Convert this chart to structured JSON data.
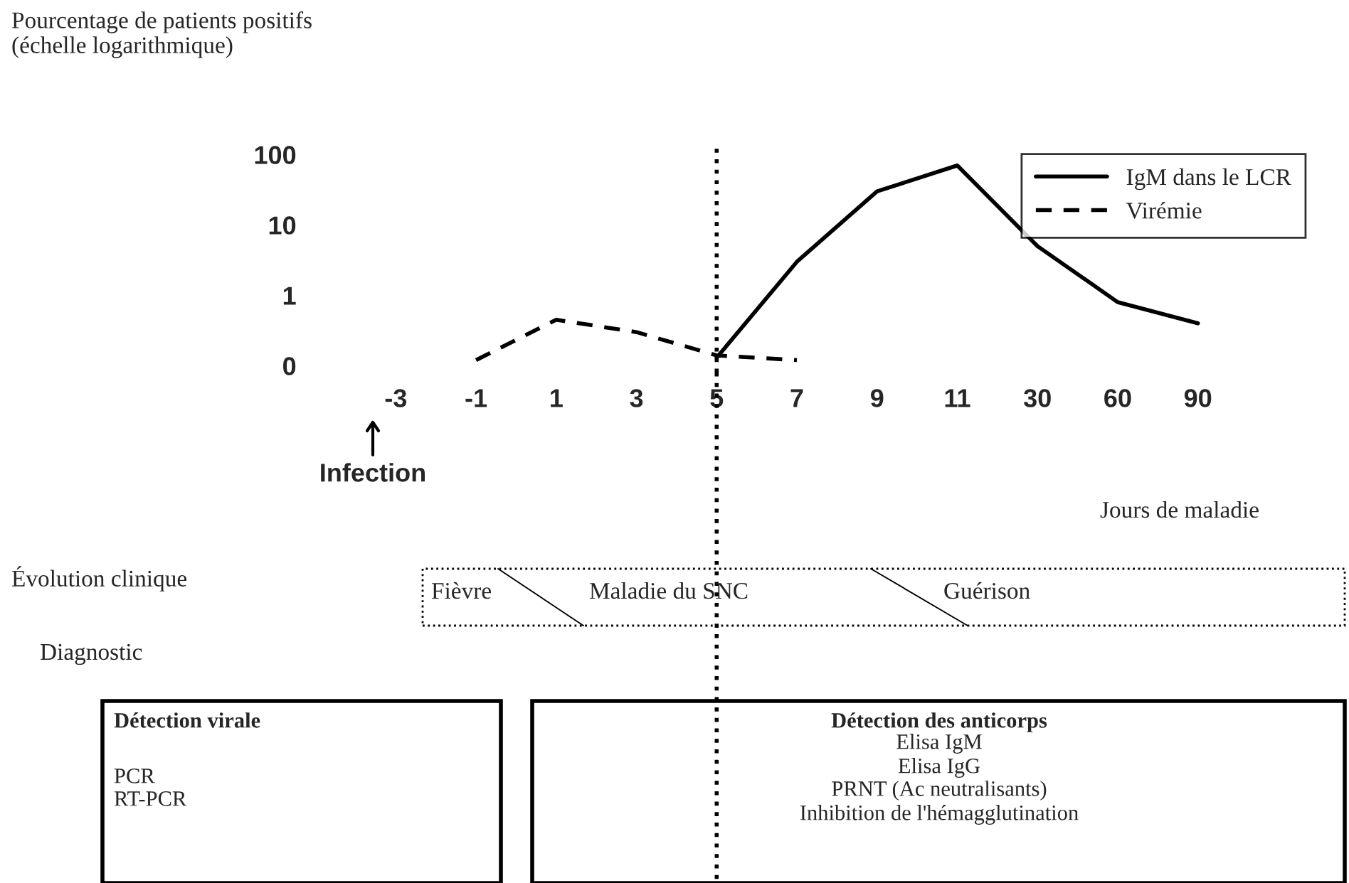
{
  "chart_data": {
    "type": "line",
    "ylabel": "Pourcentage de patients positifs\n(échelle logarithmique)",
    "xlabel": "Jours de maladie",
    "categories": [
      "-3",
      "-1",
      "1",
      "3",
      "5",
      "7",
      "9",
      "11",
      "30",
      "60",
      "90"
    ],
    "series": [
      {
        "name": "IgM dans le LCR",
        "color": "#000000",
        "line_style": "solid",
        "values": [
          null,
          null,
          null,
          null,
          0.13,
          3,
          30,
          70,
          5,
          0.8,
          0.4
        ]
      },
      {
        "name": "Virémie",
        "color": "#000000",
        "line_style": "dashed",
        "values": [
          null,
          0.12,
          0.45,
          0.3,
          0.14,
          0.12,
          null,
          null,
          null,
          null,
          null
        ]
      }
    ],
    "log": true,
    "ylim": [
      0.08,
      150
    ],
    "yticks": [
      {
        "value": 0.1,
        "label": "0"
      },
      1,
      10,
      100
    ],
    "ref_lines": [
      {
        "axis": "x",
        "value": "5",
        "line_style": "dotted",
        "color": "#000000"
      }
    ],
    "legend": "top right",
    "grid": false,
    "annotations": [
      "Infection",
      "Évolution clinique",
      "Fièvre",
      "Maladie du SNC",
      "Guérison",
      "Diagnostic",
      "Détection virale",
      "PCR",
      "RT-PCR",
      "Détection des anticorps",
      "Elisa IgM",
      "Elisa IgG",
      "PRNT (Ac neutralisants)",
      "Inhibition de l'hémagglutination"
    ]
  }
}
